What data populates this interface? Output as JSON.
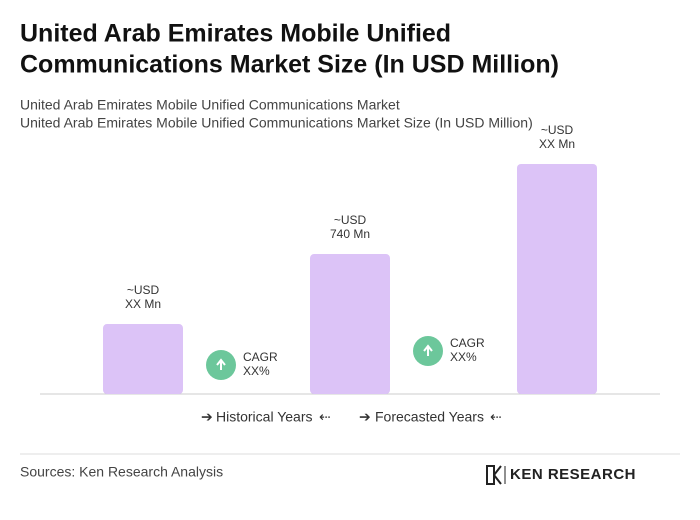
{
  "chart_data": {
    "type": "bar",
    "title": [
      "United Arab Emirates Mobile Unified",
      "Communications Market Size (In USD Million)"
    ],
    "subtitle": [
      "United Arab Emirates Mobile Unified Communications Market",
      "United Arab Emirates Mobile Unified Communications Market Size (In USD Million)"
    ],
    "values": [
      370,
      740,
      1216
    ],
    "value_labels": [
      [
        "~USD",
        "XX Mn"
      ],
      [
        "~USD",
        "740 Mn"
      ],
      [
        "~USD",
        "XX Mn"
      ]
    ],
    "color": "#dcc3f7",
    "annotations": [
      [
        "CAGR",
        "XX%"
      ],
      [
        "CAGR",
        "XX%"
      ]
    ],
    "annotation_color": "#6cc79b",
    "legend": [
      "Historical Years",
      "Forecasted Years"
    ],
    "source": "Sources: Ken Research Analysis",
    "logo": "KEN RESEARCH"
  }
}
